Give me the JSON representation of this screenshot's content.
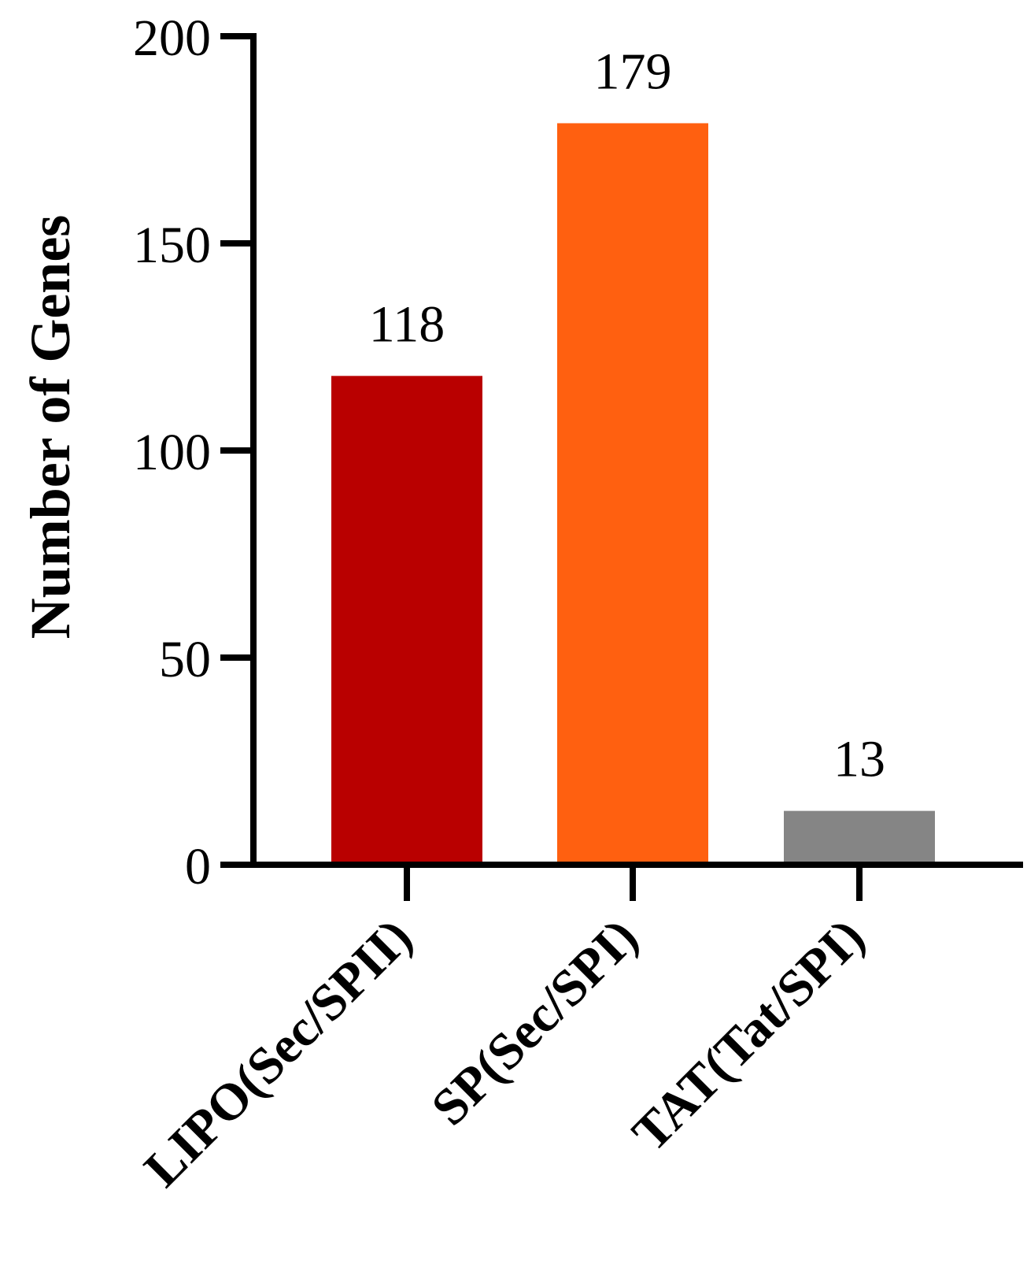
{
  "chart_data": {
    "type": "bar",
    "title": "",
    "xlabel": "",
    "ylabel": "Number of Genes",
    "ylim": [
      0,
      200
    ],
    "yticks": [
      0,
      50,
      100,
      150,
      200
    ],
    "categories": [
      "LIPO(Sec/SPII)",
      "SP(Sec/SPI)",
      "TAT(Tat/SPI)"
    ],
    "values": [
      118,
      179,
      13
    ],
    "data_labels": [
      "118",
      "179",
      "13"
    ],
    "colors": [
      "#b90000",
      "#ff6010",
      "#858585"
    ],
    "grid": false,
    "legend": "none"
  }
}
